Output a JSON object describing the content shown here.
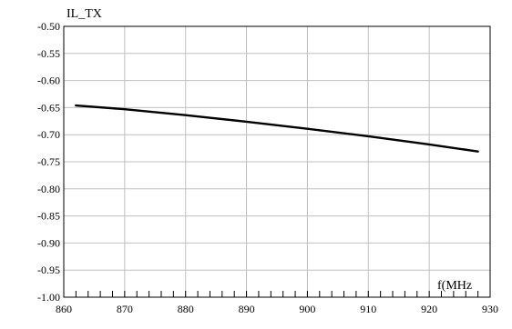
{
  "chart_data": {
    "type": "line",
    "title": "",
    "ylabel": "IL_TX",
    "xlabel": "f(MHz",
    "xlim": [
      860,
      930
    ],
    "ylim": [
      -1.0,
      -0.5
    ],
    "x_ticks": [
      "860",
      "870",
      "880",
      "890",
      "900",
      "910",
      "920",
      "930"
    ],
    "y_ticks": [
      "-0.50",
      "-0.55",
      "-0.60",
      "-0.65",
      "-0.70",
      "-0.75",
      "-0.80",
      "-0.85",
      "-0.90",
      "-0.95",
      "-1.00"
    ],
    "grid": true,
    "line_color": "#000000",
    "grid_color": "#c0c0c0",
    "series": [
      {
        "x": [
          862,
          870,
          880,
          890,
          900,
          910,
          920,
          928
        ],
        "y": [
          -0.646,
          -0.653,
          -0.664,
          -0.676,
          -0.689,
          -0.703,
          -0.718,
          -0.731
        ]
      }
    ]
  }
}
